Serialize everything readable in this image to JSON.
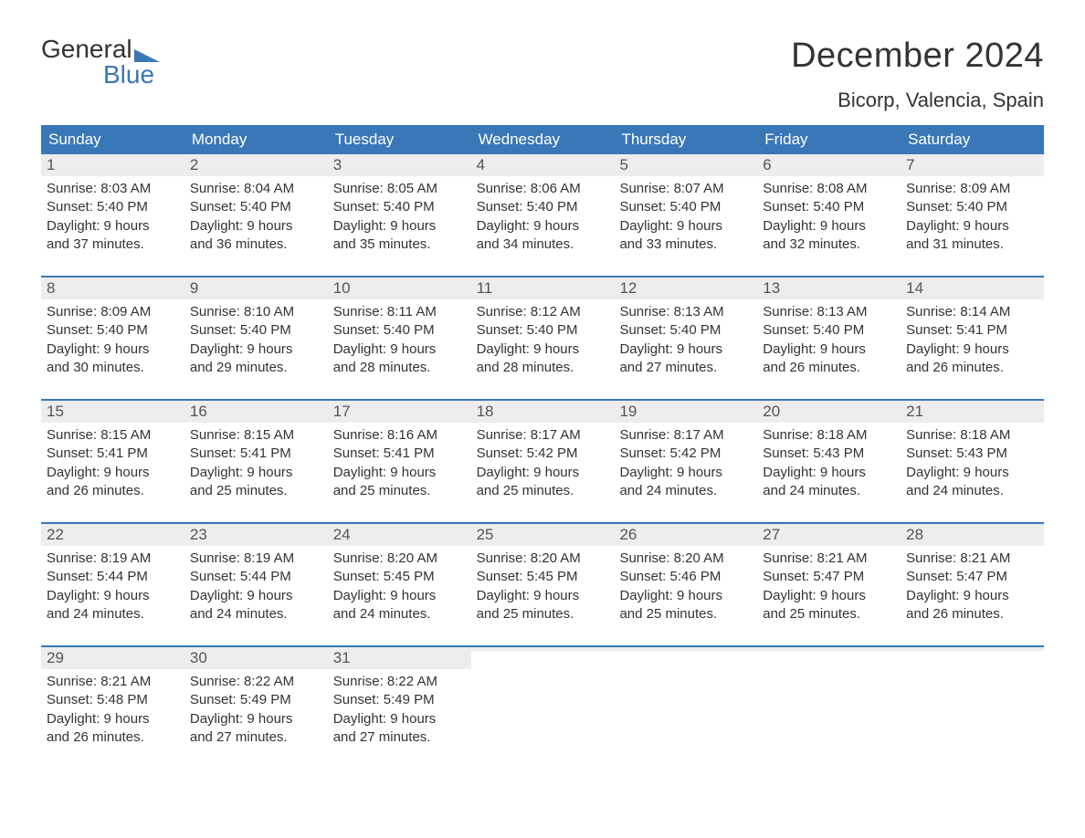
{
  "logo": {
    "word1": "General",
    "word2": "Blue",
    "triangle_color": "#3a77b7"
  },
  "title": "December 2024",
  "location": "Bicorp, Valencia, Spain",
  "colors": {
    "header_bg": "#3a77b7",
    "header_text": "#ffffff",
    "daynum_bg": "#ededed",
    "week_divider": "#3a77b7",
    "body_text": "#333333"
  },
  "day_names": [
    "Sunday",
    "Monday",
    "Tuesday",
    "Wednesday",
    "Thursday",
    "Friday",
    "Saturday"
  ],
  "weeks": [
    [
      {
        "n": "1",
        "sunrise": "8:03 AM",
        "sunset": "5:40 PM",
        "dl1": "9 hours",
        "dl2": "and 37 minutes."
      },
      {
        "n": "2",
        "sunrise": "8:04 AM",
        "sunset": "5:40 PM",
        "dl1": "9 hours",
        "dl2": "and 36 minutes."
      },
      {
        "n": "3",
        "sunrise": "8:05 AM",
        "sunset": "5:40 PM",
        "dl1": "9 hours",
        "dl2": "and 35 minutes."
      },
      {
        "n": "4",
        "sunrise": "8:06 AM",
        "sunset": "5:40 PM",
        "dl1": "9 hours",
        "dl2": "and 34 minutes."
      },
      {
        "n": "5",
        "sunrise": "8:07 AM",
        "sunset": "5:40 PM",
        "dl1": "9 hours",
        "dl2": "and 33 minutes."
      },
      {
        "n": "6",
        "sunrise": "8:08 AM",
        "sunset": "5:40 PM",
        "dl1": "9 hours",
        "dl2": "and 32 minutes."
      },
      {
        "n": "7",
        "sunrise": "8:09 AM",
        "sunset": "5:40 PM",
        "dl1": "9 hours",
        "dl2": "and 31 minutes."
      }
    ],
    [
      {
        "n": "8",
        "sunrise": "8:09 AM",
        "sunset": "5:40 PM",
        "dl1": "9 hours",
        "dl2": "and 30 minutes."
      },
      {
        "n": "9",
        "sunrise": "8:10 AM",
        "sunset": "5:40 PM",
        "dl1": "9 hours",
        "dl2": "and 29 minutes."
      },
      {
        "n": "10",
        "sunrise": "8:11 AM",
        "sunset": "5:40 PM",
        "dl1": "9 hours",
        "dl2": "and 28 minutes."
      },
      {
        "n": "11",
        "sunrise": "8:12 AM",
        "sunset": "5:40 PM",
        "dl1": "9 hours",
        "dl2": "and 28 minutes."
      },
      {
        "n": "12",
        "sunrise": "8:13 AM",
        "sunset": "5:40 PM",
        "dl1": "9 hours",
        "dl2": "and 27 minutes."
      },
      {
        "n": "13",
        "sunrise": "8:13 AM",
        "sunset": "5:40 PM",
        "dl1": "9 hours",
        "dl2": "and 26 minutes."
      },
      {
        "n": "14",
        "sunrise": "8:14 AM",
        "sunset": "5:41 PM",
        "dl1": "9 hours",
        "dl2": "and 26 minutes."
      }
    ],
    [
      {
        "n": "15",
        "sunrise": "8:15 AM",
        "sunset": "5:41 PM",
        "dl1": "9 hours",
        "dl2": "and 26 minutes."
      },
      {
        "n": "16",
        "sunrise": "8:15 AM",
        "sunset": "5:41 PM",
        "dl1": "9 hours",
        "dl2": "and 25 minutes."
      },
      {
        "n": "17",
        "sunrise": "8:16 AM",
        "sunset": "5:41 PM",
        "dl1": "9 hours",
        "dl2": "and 25 minutes."
      },
      {
        "n": "18",
        "sunrise": "8:17 AM",
        "sunset": "5:42 PM",
        "dl1": "9 hours",
        "dl2": "and 25 minutes."
      },
      {
        "n": "19",
        "sunrise": "8:17 AM",
        "sunset": "5:42 PM",
        "dl1": "9 hours",
        "dl2": "and 24 minutes."
      },
      {
        "n": "20",
        "sunrise": "8:18 AM",
        "sunset": "5:43 PM",
        "dl1": "9 hours",
        "dl2": "and 24 minutes."
      },
      {
        "n": "21",
        "sunrise": "8:18 AM",
        "sunset": "5:43 PM",
        "dl1": "9 hours",
        "dl2": "and 24 minutes."
      }
    ],
    [
      {
        "n": "22",
        "sunrise": "8:19 AM",
        "sunset": "5:44 PM",
        "dl1": "9 hours",
        "dl2": "and 24 minutes."
      },
      {
        "n": "23",
        "sunrise": "8:19 AM",
        "sunset": "5:44 PM",
        "dl1": "9 hours",
        "dl2": "and 24 minutes."
      },
      {
        "n": "24",
        "sunrise": "8:20 AM",
        "sunset": "5:45 PM",
        "dl1": "9 hours",
        "dl2": "and 24 minutes."
      },
      {
        "n": "25",
        "sunrise": "8:20 AM",
        "sunset": "5:45 PM",
        "dl1": "9 hours",
        "dl2": "and 25 minutes."
      },
      {
        "n": "26",
        "sunrise": "8:20 AM",
        "sunset": "5:46 PM",
        "dl1": "9 hours",
        "dl2": "and 25 minutes."
      },
      {
        "n": "27",
        "sunrise": "8:21 AM",
        "sunset": "5:47 PM",
        "dl1": "9 hours",
        "dl2": "and 25 minutes."
      },
      {
        "n": "28",
        "sunrise": "8:21 AM",
        "sunset": "5:47 PM",
        "dl1": "9 hours",
        "dl2": "and 26 minutes."
      }
    ],
    [
      {
        "n": "29",
        "sunrise": "8:21 AM",
        "sunset": "5:48 PM",
        "dl1": "9 hours",
        "dl2": "and 26 minutes."
      },
      {
        "n": "30",
        "sunrise": "8:22 AM",
        "sunset": "5:49 PM",
        "dl1": "9 hours",
        "dl2": "and 27 minutes."
      },
      {
        "n": "31",
        "sunrise": "8:22 AM",
        "sunset": "5:49 PM",
        "dl1": "9 hours",
        "dl2": "and 27 minutes."
      },
      {
        "empty": true
      },
      {
        "empty": true
      },
      {
        "empty": true
      },
      {
        "empty": true
      }
    ]
  ],
  "labels": {
    "sunrise": "Sunrise: ",
    "sunset": "Sunset: ",
    "daylight": "Daylight: "
  }
}
